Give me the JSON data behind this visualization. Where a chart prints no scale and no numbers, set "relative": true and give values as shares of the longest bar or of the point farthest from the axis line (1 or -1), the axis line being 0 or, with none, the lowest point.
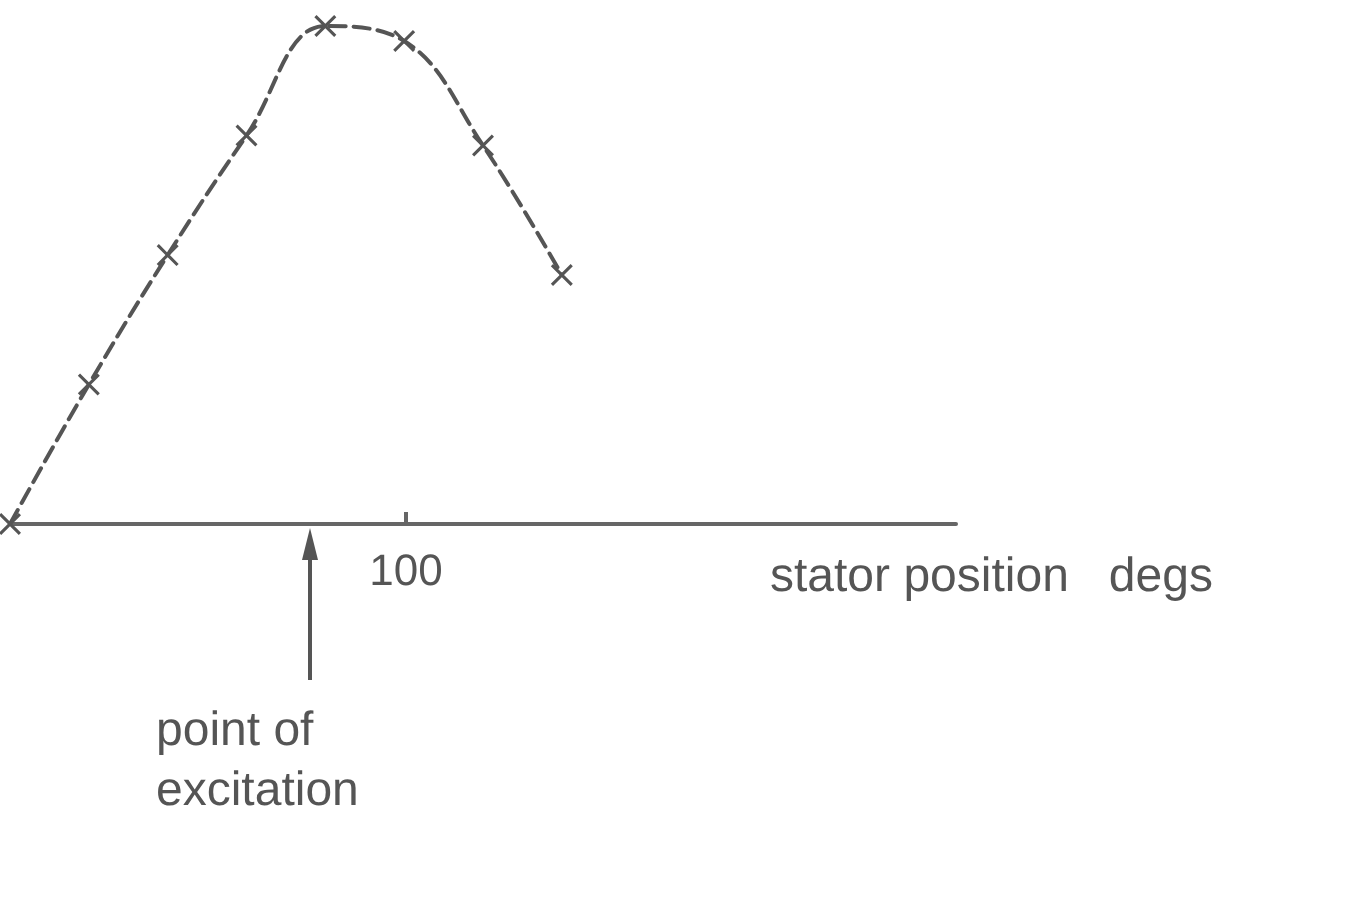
{
  "chart_data": {
    "type": "line",
    "relative": true,
    "xlabel": "stator position   degs",
    "categories": [
      null,
      null,
      null,
      null,
      null,
      null,
      null,
      null,
      null,
      null,
      null,
      null,
      null
    ],
    "annotations": [
      "100",
      "point of excitation"
    ],
    "series": [
      {
        "color": "#555555",
        "line_style": "dashed",
        "marker": "cross",
        "values": [
          0,
          0.28,
          0.54,
          0.78,
          1,
          0.97,
          0.76,
          0.5,
          null,
          null,
          null,
          null,
          null
        ]
      }
    ]
  }
}
